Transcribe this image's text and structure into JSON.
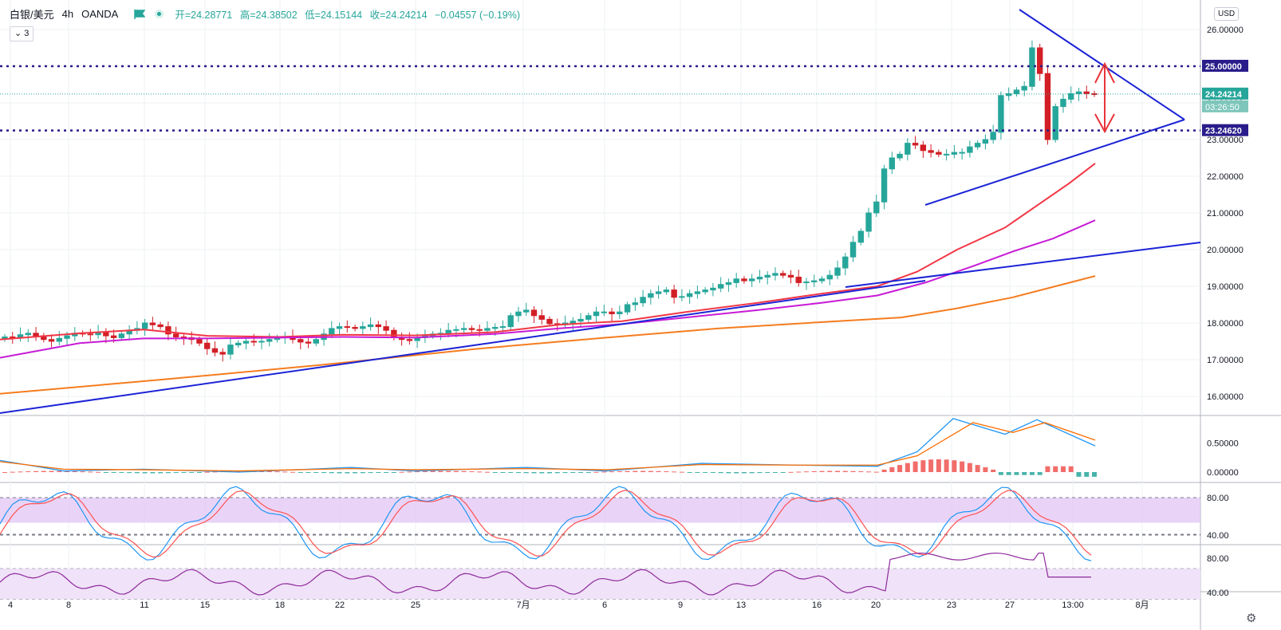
{
  "header": {
    "symbol": "白银/美元",
    "interval": "4h",
    "source": "OANDA",
    "open": "开=24.28771",
    "high": "高=24.38502",
    "low": "低=24.15144",
    "close": "收=24.24214",
    "change": "−0.04557 (−0.19%)"
  },
  "study_toggle": "3",
  "currency_button": "USD",
  "icons": {
    "flag": "flag-icon",
    "status": "status-dot-icon",
    "chevron": "chevron-down-icon",
    "settings": "gear-icon"
  },
  "colors": {
    "up": "#26a69a",
    "down": "#d21f26",
    "ma_fast": "#f23645",
    "ma_mid": "#c71bd6",
    "ma_slow": "#f57c1f",
    "trendline": "#1c24d6",
    "level": "#2a1c8a",
    "arrow": "#e8343a"
  },
  "chart_data": {
    "type": "candlestick",
    "main": {
      "y_ticks": [
        "16.00000",
        "17.00000",
        "18.00000",
        "19.00000",
        "20.00000",
        "21.00000",
        "22.00000",
        "23.00000",
        "24.00000",
        "25.00000",
        "26.00000"
      ],
      "x_ticks": [
        "4",
        "8",
        "11",
        "15",
        "18",
        "22",
        "25",
        "7月",
        "6",
        "9",
        "13",
        "16",
        "20",
        "23",
        "27",
        "13:00",
        "8月"
      ],
      "levels": [
        {
          "label": "25.00000",
          "value": 25.0
        },
        {
          "label": "23.24620",
          "value": 23.2462
        }
      ],
      "last_price": {
        "label": "24.24214",
        "value": 24.24214
      },
      "countdown": "03:26:50",
      "close_series": [
        17.62,
        17.6,
        17.68,
        17.72,
        17.65,
        17.55,
        17.5,
        17.58,
        17.65,
        17.72,
        17.7,
        17.68,
        17.75,
        17.65,
        17.6,
        17.7,
        17.8,
        17.85,
        18.0,
        17.95,
        17.9,
        17.7,
        17.62,
        17.6,
        17.55,
        17.45,
        17.3,
        17.2,
        17.15,
        17.4,
        17.45,
        17.5,
        17.48,
        17.5,
        17.55,
        17.6,
        17.62,
        17.55,
        17.48,
        17.45,
        17.55,
        17.7,
        17.85,
        17.9,
        17.88,
        17.85,
        17.9,
        17.95,
        17.9,
        17.8,
        17.6,
        17.55,
        17.52,
        17.6,
        17.65,
        17.7,
        17.72,
        17.8,
        17.82,
        17.85,
        17.82,
        17.8,
        17.85,
        17.88,
        17.9,
        18.2,
        18.3,
        18.35,
        18.2,
        18.1,
        17.98,
        17.95,
        18.0,
        18.05,
        18.1,
        18.2,
        18.3,
        18.3,
        18.25,
        18.3,
        18.5,
        18.55,
        18.7,
        18.8,
        18.85,
        18.9,
        18.7,
        18.72,
        18.8,
        18.85,
        18.9,
        18.95,
        19.05,
        19.1,
        19.2,
        19.15,
        19.2,
        19.25,
        19.3,
        19.35,
        19.3,
        19.25,
        19.1,
        19.12,
        19.15,
        19.2,
        19.3,
        19.5,
        19.8,
        20.2,
        20.5,
        21.0,
        21.3,
        22.2,
        22.5,
        22.6,
        22.9,
        22.85,
        22.7,
        22.65,
        22.6,
        22.6,
        22.65,
        22.65,
        22.8,
        22.9,
        23.0,
        23.2,
        24.2,
        24.25,
        24.35,
        24.45,
        25.5,
        24.8,
        23.0,
        23.9,
        24.1,
        24.25,
        24.3,
        24.25,
        24.24
      ],
      "ma_fast_end": 22.4,
      "ma_mid_end": 20.8,
      "ma_slow_end": 19.3,
      "trendlines": [
        "lower-support",
        "long-support",
        "triangle-upper",
        "triangle-lower"
      ]
    },
    "macd": {
      "y_ticks": [
        "0.50000",
        "0.00000"
      ]
    },
    "stochastic": {
      "y_ticks": [
        "80.00",
        "40.00"
      ],
      "band": [
        20,
        80
      ]
    },
    "rsi": {
      "y_ticks": [
        "80.00",
        "40.00"
      ],
      "band": [
        30,
        70
      ]
    }
  }
}
